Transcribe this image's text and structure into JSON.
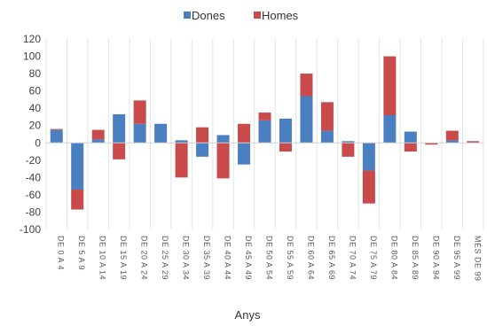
{
  "chart_data": {
    "type": "bar",
    "stacked": true,
    "xlabel": "Anys",
    "ylabel": "",
    "ylim": [
      -100,
      120
    ],
    "yticks": [
      -100,
      -80,
      -60,
      -40,
      -20,
      0,
      20,
      40,
      60,
      80,
      100,
      120
    ],
    "grid": "vertical",
    "legend_position": "top",
    "categories": [
      "DE 0 A 4",
      "DE 5 A 9",
      "DE 10 A 14",
      "DE 15 A 19",
      "DE 20 A 24",
      "DE 25 A 29",
      "DE 30 A 34",
      "DE 35 A 39",
      "DE 40 A 44",
      "DE 45 A 49",
      "DE 50 A 54",
      "DE 55 A 59",
      "DE 60 A 64",
      "DE 65 A 69",
      "DE 70 A 74",
      "DE 75 A 79",
      "DE 80 A 84",
      "DE 85 A 89",
      "DE 90 A 94",
      "DE 95 A 99",
      "MÉS DE 99"
    ],
    "series": [
      {
        "name": "Dones",
        "color": "#4a7fc1",
        "values": [
          15,
          -54,
          4,
          33,
          22,
          22,
          3,
          -16,
          9,
          -25,
          26,
          28,
          54,
          14,
          2,
          -32,
          32,
          13,
          0,
          3,
          0
        ]
      },
      {
        "name": "Homes",
        "color": "#c94a4a",
        "values": [
          1,
          -23,
          11,
          -19,
          27,
          0,
          -40,
          18,
          -41,
          22,
          9,
          -10,
          26,
          33,
          -16,
          -38,
          68,
          -10,
          -2,
          11,
          2
        ]
      }
    ]
  }
}
